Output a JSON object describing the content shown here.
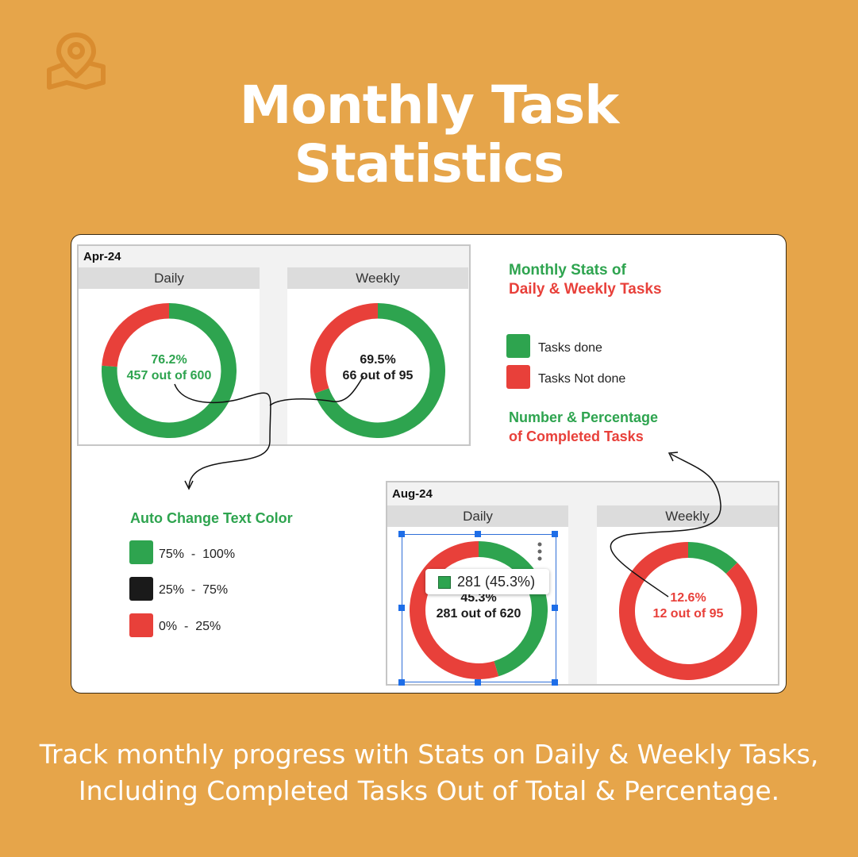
{
  "header": {
    "title_line1": "Monthly Task",
    "title_line2": "Statistics"
  },
  "colors": {
    "background": "#E6A54A",
    "green": "#2ea44f",
    "red": "#e8403a",
    "black": "#1a1a1a",
    "logo": "#D98C2F"
  },
  "icons": {
    "logo": "map-pin-icon"
  },
  "card": {
    "apr": {
      "label": "Apr-24",
      "daily_header": "Daily",
      "weekly_header": "Weekly",
      "daily_pct": "76.2%",
      "daily_count": "457 out of 600",
      "weekly_pct": "69.5%",
      "weekly_count": "66 out of 95"
    },
    "aug": {
      "label": "Aug-24",
      "daily_header": "Daily",
      "weekly_header": "Weekly",
      "daily_pct": "45.3%",
      "daily_count": "281 out of 620",
      "weekly_pct": "12.6%",
      "weekly_count": "12 out of 95",
      "tooltip": "281 (45.3%)"
    },
    "stats_heading": {
      "line1": "Monthly Stats of",
      "line2": "Daily & Weekly Tasks"
    },
    "legend": [
      {
        "label": "Tasks done",
        "color": "#2ea44f"
      },
      {
        "label": "Tasks Not done",
        "color": "#e8403a"
      }
    ],
    "number_heading": {
      "line1": "Number & Percentage",
      "line2": "of Completed Tasks"
    },
    "auto_color": {
      "title": "Auto Change Text Color",
      "ranges": [
        {
          "label": "75%  -  100%",
          "color": "#2ea44f"
        },
        {
          "label": "25%  -  75%",
          "color": "#1a1a1a"
        },
        {
          "label": "0%  -  25%",
          "color": "#e8403a"
        }
      ]
    }
  },
  "chart_data": [
    {
      "type": "pie",
      "title": "Apr-24 Daily",
      "categories": [
        "Tasks done",
        "Tasks Not done"
      ],
      "values": [
        457,
        143
      ],
      "center_labels": [
        "76.2%",
        "457 out of 600"
      ]
    },
    {
      "type": "pie",
      "title": "Apr-24 Weekly",
      "categories": [
        "Tasks done",
        "Tasks Not done"
      ],
      "values": [
        66,
        29
      ],
      "center_labels": [
        "69.5%",
        "66 out of 95"
      ]
    },
    {
      "type": "pie",
      "title": "Aug-24 Daily",
      "categories": [
        "Tasks done",
        "Tasks Not done"
      ],
      "values": [
        281,
        339
      ],
      "center_labels": [
        "45.3%",
        "281 out of 620"
      ]
    },
    {
      "type": "pie",
      "title": "Aug-24 Weekly",
      "categories": [
        "Tasks done",
        "Tasks Not done"
      ],
      "values": [
        12,
        83
      ],
      "center_labels": [
        "12.6%",
        "12 out of 95"
      ]
    }
  ],
  "footer": {
    "line1": "Track monthly progress with Stats on Daily & Weekly Tasks,",
    "line2": "Including Completed Tasks Out of Total & Percentage."
  }
}
